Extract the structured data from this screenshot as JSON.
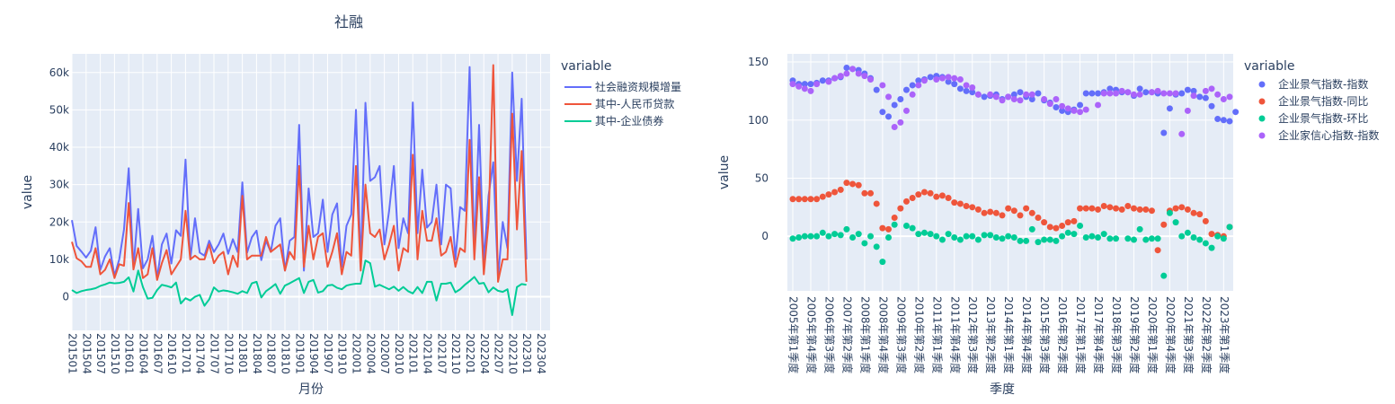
{
  "chart_data": [
    {
      "type": "line",
      "title": "社融",
      "xlabel": "月份",
      "ylabel": "value",
      "legend_title": "variable",
      "legend_position": "top-right",
      "grid": true,
      "ylim": [
        -9000,
        65000
      ],
      "y_ticks": [
        0,
        10000,
        20000,
        30000,
        40000,
        50000,
        60000
      ],
      "y_tick_labels": [
        "0",
        "10k",
        "20k",
        "30k",
        "40k",
        "50k",
        "60k"
      ],
      "x_tick_labels": [
        "201501",
        "201504",
        "201507",
        "201510",
        "201601",
        "201604",
        "201607",
        "201610",
        "201701",
        "201704",
        "201707",
        "201710",
        "201801",
        "201804",
        "201807",
        "201810",
        "201901",
        "201904",
        "201907",
        "201910",
        "202001",
        "202004",
        "202007",
        "202010",
        "202101",
        "202104",
        "202107",
        "202110",
        "202201",
        "202204",
        "202207",
        "202210",
        "202301",
        "202304"
      ],
      "series": [
        {
          "name": "社会融资规模增量",
          "color": "#636efa",
          "values": [
            20500,
            13600,
            12100,
            10500,
            12300,
            18600,
            7200,
            10800,
            13000,
            5600,
            10000,
            18000,
            34400,
            7800,
            23500,
            7600,
            10000,
            16300,
            4900,
            14000,
            16900,
            8900,
            17800,
            16300,
            36700,
            10000,
            21000,
            11800,
            11000,
            15000,
            12000,
            14000,
            16900,
            11500,
            15400,
            12000,
            30600,
            11800,
            15900,
            17700,
            9800,
            15000,
            12000,
            19000,
            21000,
            7000,
            15000,
            16000,
            46000,
            7000,
            29000,
            16000,
            17000,
            26000,
            12000,
            22000,
            25000,
            8000,
            19000,
            22000,
            50000,
            8000,
            51900,
            31000,
            32000,
            35000,
            14000,
            23000,
            35000,
            13000,
            21000,
            17000,
            52000,
            17000,
            34000,
            18500,
            20000,
            30000,
            14000,
            30000,
            29000,
            10000,
            24000,
            23000,
            61500,
            12000,
            46000,
            9000,
            27000,
            36000,
            5000,
            20000,
            13000,
            60000,
            31000,
            53000,
            10000
          ],
          "x_start": "201501"
        },
        {
          "name": "其中-人民币贷款",
          "color": "#ef553b",
          "values": [
            14700,
            10300,
            9500,
            8000,
            8000,
            13000,
            6000,
            7200,
            10000,
            5000,
            8700,
            8300,
            25100,
            7300,
            13000,
            5000,
            6000,
            13000,
            4500,
            9000,
            12500,
            6000,
            8000,
            10000,
            23000,
            10000,
            11000,
            10000,
            10000,
            14000,
            9000,
            11000,
            12000,
            6000,
            11000,
            8000,
            27000,
            10000,
            11000,
            11000,
            11000,
            16000,
            12000,
            13000,
            14000,
            7000,
            12000,
            10000,
            35000,
            8000,
            19000,
            10000,
            16000,
            17000,
            8000,
            12000,
            17000,
            6000,
            12000,
            11000,
            35000,
            7000,
            30000,
            17000,
            16000,
            18000,
            10000,
            14000,
            19000,
            7000,
            13000,
            12000,
            38000,
            10000,
            23000,
            15000,
            15000,
            21000,
            11000,
            12000,
            16000,
            8000,
            13000,
            12000,
            42000,
            10000,
            32000,
            6000,
            20000,
            62000,
            4000,
            10000,
            10000,
            49000,
            18000,
            39000,
            4000
          ],
          "x_start": "201501"
        },
        {
          "name": "其中-企业债券",
          "color": "#00cc96",
          "values": [
            1800,
            1000,
            1500,
            1800,
            2000,
            2300,
            2900,
            3300,
            3800,
            3600,
            3700,
            4000,
            5200,
            1400,
            7000,
            2600,
            -500,
            -300,
            1800,
            3200,
            2900,
            2500,
            3800,
            -1800,
            -400,
            -1000,
            0,
            500,
            -2400,
            -700,
            2500,
            1400,
            1700,
            1500,
            1200,
            800,
            1500,
            1000,
            3600,
            4000,
            -200,
            1500,
            2400,
            3400,
            800,
            3000,
            3600,
            4300,
            5000,
            1000,
            4000,
            4500,
            1100,
            1500,
            3000,
            3200,
            2400,
            2000,
            3000,
            3300,
            3500,
            3500,
            9700,
            9000,
            2700,
            3200,
            2600,
            2000,
            2700,
            1600,
            2600,
            1500,
            900,
            2600,
            1000,
            4000,
            4000,
            -1000,
            3500,
            3500,
            3800,
            1200,
            2000,
            3200,
            4200,
            5300,
            3500,
            3700,
            1200,
            2500,
            1600,
            1300,
            2000,
            -4900,
            2600,
            3400,
            3200
          ],
          "x_start": "201501"
        }
      ]
    },
    {
      "type": "scatter",
      "title": "",
      "xlabel": "季度",
      "ylabel": "value",
      "legend_title": "variable",
      "legend_position": "top-right",
      "grid": true,
      "ylim": [
        -47,
        157
      ],
      "y_ticks": [
        0,
        50,
        100,
        150
      ],
      "y_tick_labels": [
        "0",
        "50",
        "100",
        "150"
      ],
      "x_tick_labels": [
        "2005年第1季度",
        "2005年第4季度",
        "2006年第3季度",
        "2007年第2季度",
        "2008年第1季度",
        "2008年第4季度",
        "2009年第3季度",
        "2010年第2季度",
        "2011年第1季度",
        "2011年第4季度",
        "2012年第3季度",
        "2013年第2季度",
        "2014年第1季度",
        "2014年第4季度",
        "2015年第3季度",
        "2016年第2季度",
        "2017年第1季度",
        "2017年第4季度",
        "2018年第3季度",
        "2019年第2季度",
        "2020年第1季度",
        "2020年第4季度",
        "2021年第3季度",
        "2022年第2季度",
        "2023年第1季度"
      ],
      "series": [
        {
          "name": "企业景气指数-指数",
          "color": "#636efa",
          "values": [
            134,
            131,
            131,
            131,
            132,
            134,
            134,
            136,
            137,
            145,
            144,
            143,
            140,
            136,
            126,
            107,
            103,
            113,
            118,
            126,
            130,
            134,
            135,
            137,
            138,
            137,
            133,
            131,
            127,
            125,
            124,
            122,
            120,
            121,
            122,
            118,
            120,
            122,
            124,
            120,
            118,
            123,
            117,
            115,
            111,
            108,
            107,
            109,
            113,
            123,
            123,
            123,
            124,
            127,
            126,
            124,
            124,
            121,
            127,
            124,
            124,
            123,
            89,
            110,
            122,
            123,
            126,
            125,
            120,
            119,
            112,
            101,
            100,
            99,
            107
          ]
        },
        {
          "name": "企业景气指数-同比",
          "color": "#ef553b",
          "values": [
            32,
            32,
            32,
            32,
            32,
            34,
            36,
            38,
            40,
            46,
            45,
            44,
            37,
            37,
            28,
            7,
            6,
            16,
            24,
            30,
            33,
            36,
            38,
            37,
            34,
            35,
            33,
            29,
            28,
            26,
            25,
            23,
            20,
            21,
            20,
            18,
            24,
            22,
            18,
            24,
            20,
            16,
            12,
            8,
            7,
            9,
            12,
            13,
            24,
            24,
            24,
            23,
            26,
            25,
            24,
            23,
            26,
            24,
            23,
            23,
            22,
            -12,
            10,
            22,
            24,
            25,
            23,
            20,
            19,
            13,
            2,
            1,
            0,
            8
          ]
        },
        {
          "name": "企业景气指数-环比",
          "color": "#00cc96",
          "values": [
            -2,
            -1,
            0,
            0,
            0,
            3,
            0,
            2,
            1,
            6,
            -1,
            2,
            -6,
            0,
            -9,
            -22,
            -1,
            10,
            9,
            7,
            2,
            3,
            2,
            0,
            -3,
            2,
            -1,
            -3,
            0,
            0,
            -3,
            1,
            1,
            -1,
            -2,
            0,
            -1,
            -4,
            -4,
            6,
            -5,
            -3,
            -3,
            -4,
            0,
            3,
            2,
            9,
            -1,
            0,
            -1,
            2,
            -2,
            -2,
            -2,
            -3,
            6,
            -3,
            -2,
            -2,
            -34,
            20,
            12,
            0,
            3,
            -1,
            -3,
            -6,
            -10,
            0,
            -2,
            8
          ]
        },
        {
          "name": "企业家信心指数-指数",
          "color": "#ab63fa",
          "values": [
            131,
            129,
            127,
            125,
            131,
            133,
            136,
            138,
            140,
            144,
            140,
            138,
            135,
            130,
            120,
            94,
            98,
            108,
            122,
            130,
            134,
            135,
            136,
            137,
            136,
            135,
            130,
            128,
            122,
            122,
            120,
            117,
            120,
            118,
            117,
            122,
            122,
            118,
            114,
            118,
            112,
            110,
            108,
            107,
            109,
            113,
            123,
            123,
            123,
            125,
            124,
            122,
            122,
            124,
            125,
            123,
            123,
            123,
            88,
            108,
            121,
            125,
            127,
            122,
            118,
            120
          ]
        }
      ]
    }
  ]
}
